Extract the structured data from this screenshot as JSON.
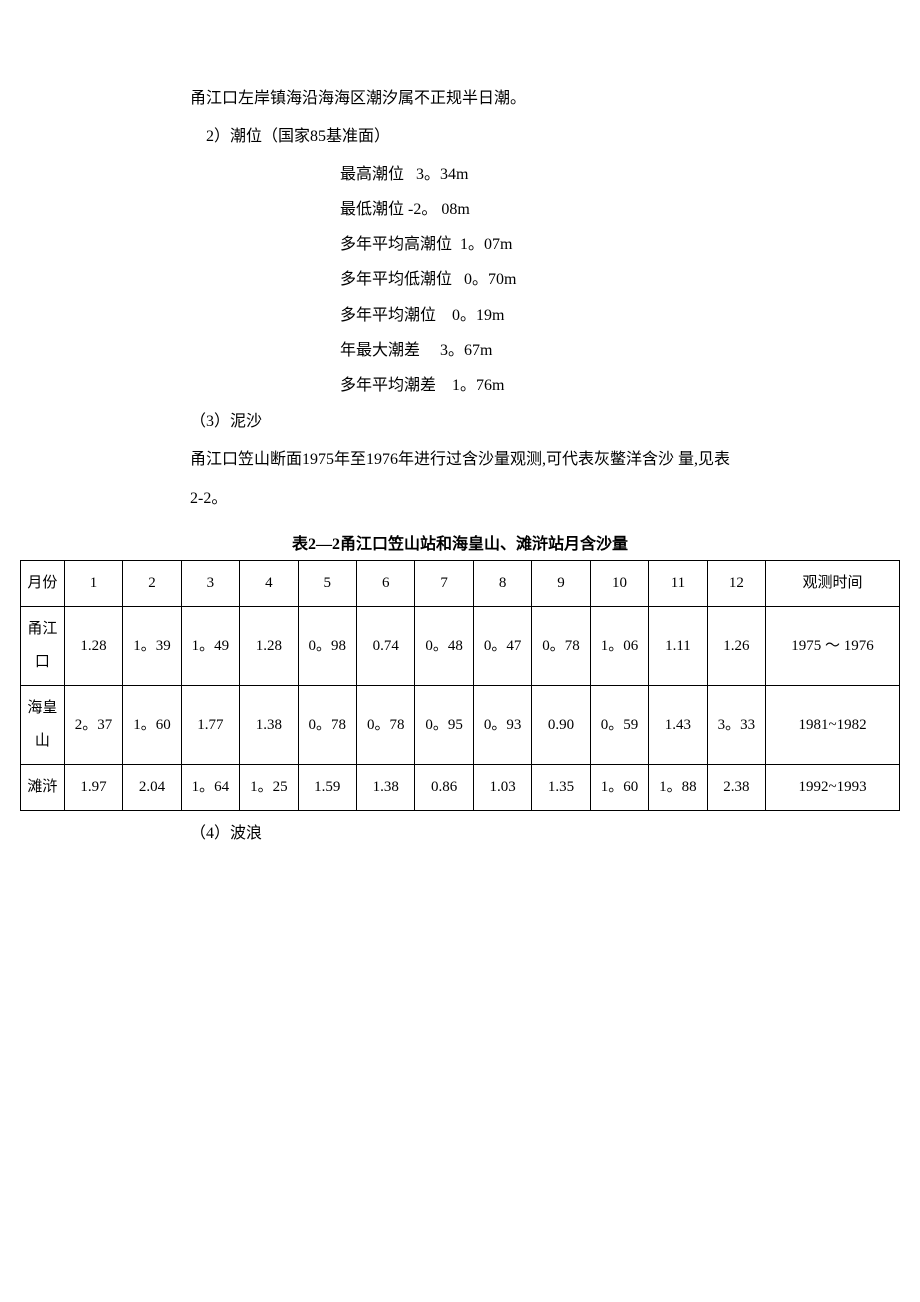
{
  "intro": {
    "line1": "甬江口左岸镇海沿海海区潮汐属不正规半日潮。",
    "line2": "2）潮位（国家85基准面）"
  },
  "tide": {
    "r1": "最高潮位   3。34m",
    "r2": "最低潮位 -2。 08m",
    "r3": "多年平均高潮位  1。07m",
    "r4": "多年平均低潮位   0。70m",
    "r5": "多年平均潮位    0。19m",
    "r6": "年最大潮差     3。67m",
    "r7": "多年平均潮差    1。76m"
  },
  "sediment": {
    "label": "（3）泥沙",
    "desc": "甬江口笠山断面1975年至1976年进行过含沙量观测,可代表灰鳖洋含沙 量,见表2-2。"
  },
  "table": {
    "title": "表2—2甬江口笠山站和海皇山、滩浒站月含沙量",
    "header": {
      "month": "月份",
      "m1": "1",
      "m2": "2",
      "m3": "3",
      "m4": "4",
      "m5": "5",
      "m6": "6",
      "m7": "7",
      "m8": "8",
      "m9": "9",
      "m10": "10",
      "m11": "11",
      "m12": "12",
      "obs": "观测时间"
    },
    "rows": [
      {
        "label": "甬江口",
        "v1": "1.28",
        "v2": "1。39",
        "v3": "1。49",
        "v4": "1.28",
        "v5": "0。98",
        "v6": "0.74",
        "v7": "0。48",
        "v8": "0。47",
        "v9": "0。78",
        "v10": "1。06",
        "v11": "1.11",
        "v12": "1.26",
        "time": "1975 〜 1976"
      },
      {
        "label": "海皇山",
        "v1": "2。37",
        "v2": "1。60",
        "v3": "1.77",
        "v4": "1.38",
        "v5": "0。78",
        "v6": "0。78",
        "v7": "0。95",
        "v8": "0。93",
        "v9": "0.90",
        "v10": "0。59",
        "v11": "1.43",
        "v12": "3。33",
        "time": "1981~1982"
      },
      {
        "label": "滩浒",
        "v1": "1.97",
        "v2": "2.04",
        "v3": "1。64",
        "v4": "1。25",
        "v5": "1.59",
        "v6": "1.38",
        "v7": "0.86",
        "v8": "1.03",
        "v9": "1.35",
        "v10": "1。60",
        "v11": "1。88",
        "v12": "2.38",
        "time": "1992~1993"
      }
    ]
  },
  "after": {
    "label": "（4）波浪"
  },
  "style": {
    "text_color": "#000000",
    "background": "#ffffff",
    "border_color": "#000000",
    "body_fontsize": 16,
    "table_fontsize": 15
  }
}
